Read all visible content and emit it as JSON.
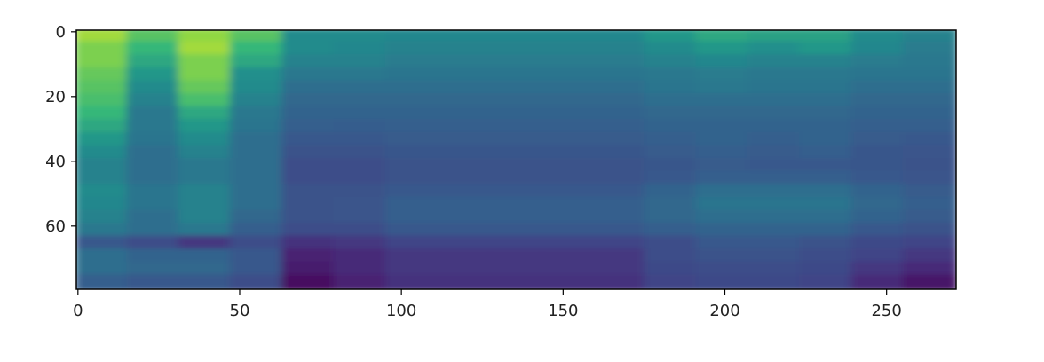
{
  "chart_data": {
    "type": "heatmap",
    "title": "",
    "xlabel": "",
    "ylabel": "",
    "colormap": "viridis",
    "xlim": [
      -0.5,
      271.5
    ],
    "ylim": [
      79.5,
      -0.5
    ],
    "y_inverted": true,
    "grid": false,
    "x_ticks": [
      0,
      50,
      100,
      150,
      200,
      250
    ],
    "y_ticks": [
      0,
      20,
      40,
      60
    ],
    "x_tick_labels": [
      "0",
      "50",
      "100",
      "150",
      "200",
      "250"
    ],
    "y_tick_labels": [
      "0",
      "20",
      "40",
      "60"
    ],
    "x_bin_edges": [
      0,
      16,
      32,
      48,
      64,
      80,
      96,
      112,
      128,
      144,
      160,
      176,
      192,
      208,
      224,
      240,
      256,
      272
    ],
    "y_bin_size": 4,
    "z_normalized": [
      [
        0.9,
        0.8,
        0.88,
        0.8,
        0.6,
        0.6,
        0.58,
        0.58,
        0.58,
        0.58,
        0.58,
        0.65,
        0.7,
        0.68,
        0.68,
        0.6,
        0.55
      ],
      [
        0.85,
        0.75,
        0.9,
        0.75,
        0.6,
        0.58,
        0.55,
        0.55,
        0.55,
        0.55,
        0.55,
        0.6,
        0.65,
        0.62,
        0.65,
        0.58,
        0.52
      ],
      [
        0.85,
        0.7,
        0.85,
        0.7,
        0.55,
        0.55,
        0.52,
        0.52,
        0.52,
        0.52,
        0.52,
        0.55,
        0.58,
        0.55,
        0.55,
        0.52,
        0.5
      ],
      [
        0.82,
        0.65,
        0.85,
        0.62,
        0.5,
        0.5,
        0.48,
        0.48,
        0.48,
        0.48,
        0.48,
        0.5,
        0.52,
        0.5,
        0.5,
        0.48,
        0.48
      ],
      [
        0.8,
        0.6,
        0.82,
        0.6,
        0.45,
        0.45,
        0.45,
        0.45,
        0.45,
        0.45,
        0.45,
        0.48,
        0.5,
        0.48,
        0.48,
        0.45,
        0.45
      ],
      [
        0.78,
        0.55,
        0.78,
        0.55,
        0.42,
        0.42,
        0.42,
        0.42,
        0.42,
        0.42,
        0.42,
        0.45,
        0.45,
        0.45,
        0.45,
        0.42,
        0.42
      ],
      [
        0.75,
        0.5,
        0.7,
        0.5,
        0.4,
        0.4,
        0.4,
        0.4,
        0.4,
        0.4,
        0.4,
        0.42,
        0.42,
        0.42,
        0.42,
        0.4,
        0.4
      ],
      [
        0.7,
        0.5,
        0.65,
        0.48,
        0.38,
        0.37,
        0.38,
        0.38,
        0.38,
        0.38,
        0.38,
        0.4,
        0.4,
        0.4,
        0.4,
        0.38,
        0.38
      ],
      [
        0.65,
        0.48,
        0.6,
        0.45,
        0.35,
        0.35,
        0.36,
        0.36,
        0.36,
        0.36,
        0.36,
        0.38,
        0.4,
        0.38,
        0.4,
        0.36,
        0.35
      ],
      [
        0.6,
        0.45,
        0.55,
        0.45,
        0.32,
        0.32,
        0.34,
        0.34,
        0.34,
        0.34,
        0.34,
        0.36,
        0.38,
        0.36,
        0.38,
        0.34,
        0.33
      ],
      [
        0.55,
        0.45,
        0.5,
        0.45,
        0.3,
        0.3,
        0.32,
        0.32,
        0.32,
        0.32,
        0.32,
        0.34,
        0.36,
        0.35,
        0.35,
        0.34,
        0.32
      ],
      [
        0.55,
        0.45,
        0.5,
        0.45,
        0.3,
        0.3,
        0.32,
        0.32,
        0.32,
        0.32,
        0.32,
        0.35,
        0.38,
        0.38,
        0.38,
        0.35,
        0.33
      ],
      [
        0.6,
        0.48,
        0.55,
        0.45,
        0.32,
        0.32,
        0.35,
        0.35,
        0.35,
        0.35,
        0.35,
        0.4,
        0.45,
        0.45,
        0.45,
        0.4,
        0.36
      ],
      [
        0.58,
        0.48,
        0.55,
        0.45,
        0.32,
        0.33,
        0.38,
        0.38,
        0.38,
        0.38,
        0.38,
        0.42,
        0.48,
        0.48,
        0.48,
        0.42,
        0.38
      ],
      [
        0.55,
        0.45,
        0.55,
        0.42,
        0.32,
        0.33,
        0.38,
        0.38,
        0.38,
        0.38,
        0.38,
        0.42,
        0.45,
        0.45,
        0.45,
        0.4,
        0.36
      ],
      [
        0.5,
        0.45,
        0.5,
        0.38,
        0.3,
        0.3,
        0.35,
        0.35,
        0.35,
        0.35,
        0.35,
        0.38,
        0.4,
        0.4,
        0.4,
        0.35,
        0.32
      ],
      [
        0.35,
        0.3,
        0.2,
        0.3,
        0.18,
        0.2,
        0.25,
        0.25,
        0.25,
        0.25,
        0.25,
        0.3,
        0.35,
        0.35,
        0.32,
        0.28,
        0.25
      ],
      [
        0.45,
        0.4,
        0.4,
        0.35,
        0.12,
        0.15,
        0.2,
        0.2,
        0.2,
        0.2,
        0.2,
        0.3,
        0.32,
        0.32,
        0.3,
        0.25,
        0.2
      ],
      [
        0.45,
        0.42,
        0.42,
        0.35,
        0.1,
        0.15,
        0.2,
        0.2,
        0.2,
        0.2,
        0.2,
        0.28,
        0.3,
        0.3,
        0.28,
        0.2,
        0.15
      ],
      [
        0.38,
        0.35,
        0.35,
        0.3,
        0.05,
        0.12,
        0.18,
        0.18,
        0.18,
        0.18,
        0.18,
        0.25,
        0.28,
        0.28,
        0.25,
        0.15,
        0.08
      ]
    ]
  }
}
